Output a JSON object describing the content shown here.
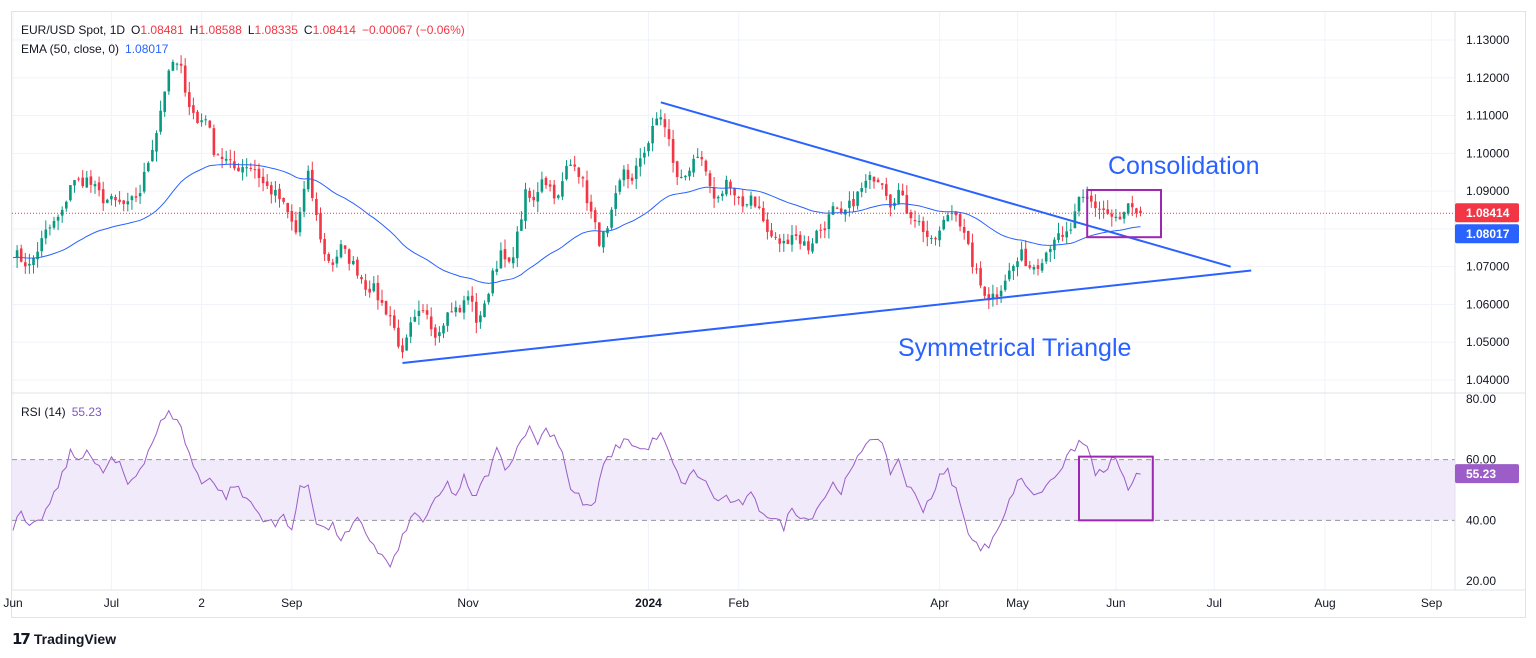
{
  "legend": {
    "symbol": "EUR/USD Spot, 1D",
    "open_label": "O",
    "open": "1.08481",
    "high_label": "H",
    "high": "1.08588",
    "low_label": "L",
    "low": "1.08335",
    "close_label": "C",
    "close": "1.08414",
    "change": "−0.00067 (−0.06%)",
    "ema_label": "EMA (50, close, 0)",
    "ema_value": "1.08017",
    "rsi_label": "RSI (14)",
    "rsi_value": "55.23"
  },
  "annotations": {
    "consolidation": "Consolidation",
    "triangle": "Symmetrical Triangle"
  },
  "branding": {
    "logo": "17",
    "name": "TradingView"
  },
  "colors": {
    "up": "#089981",
    "down": "#f23645",
    "ema": "#2962ff",
    "rsi": "#9c5dc8",
    "rsi_band": "#f0eafa",
    "box": "#9c27b0",
    "trend": "#2962ff",
    "grid": "#f0f3fa",
    "text": "#131722"
  },
  "chart_data": [
    {
      "type": "candlestick",
      "title": "EUR/USD Spot, 1D",
      "ylim": [
        1.036,
        1.134
      ],
      "y_ticks": [
        "1.04000",
        "1.05000",
        "1.06000",
        "1.07000",
        "1.08000",
        "1.09000",
        "1.10000",
        "1.11000",
        "1.12000",
        "1.13000"
      ],
      "x_ticks": [
        "Jun",
        "Jul",
        "2",
        "Sep",
        "Nov",
        "2024",
        "Feb",
        "Apr",
        "May",
        "Jun",
        "Jul",
        "Aug",
        "Sep"
      ],
      "price_labels": {
        "last": "1.08414",
        "ema": "1.08017"
      },
      "ema_period": 50,
      "close_path": [
        [
          0,
          1.074
        ],
        [
          4,
          1.07
        ],
        [
          8,
          1.079
        ],
        [
          12,
          1.084
        ],
        [
          14,
          1.092
        ],
        [
          18,
          1.093
        ],
        [
          22,
          1.088
        ],
        [
          25,
          1.087
        ],
        [
          28,
          1.086
        ],
        [
          31,
          1.09
        ],
        [
          33,
          1.098
        ],
        [
          35,
          1.106
        ],
        [
          37,
          1.117
        ],
        [
          39,
          1.124
        ],
        [
          41,
          1.122
        ],
        [
          43,
          1.113
        ],
        [
          45,
          1.108
        ],
        [
          47,
          1.11
        ],
        [
          49,
          1.101
        ],
        [
          51,
          1.099
        ],
        [
          54,
          1.096
        ],
        [
          57,
          1.097
        ],
        [
          59,
          1.096
        ],
        [
          61,
          1.092
        ],
        [
          63,
          1.09
        ],
        [
          65,
          1.088
        ],
        [
          67,
          1.084
        ],
        [
          69,
          1.079
        ],
        [
          71,
          1.09
        ],
        [
          72,
          1.094
        ],
        [
          74,
          1.083
        ],
        [
          76,
          1.073
        ],
        [
          78,
          1.071
        ],
        [
          80,
          1.075
        ],
        [
          82,
          1.072
        ],
        [
          84,
          1.069
        ],
        [
          86,
          1.065
        ],
        [
          88,
          1.064
        ],
        [
          90,
          1.06
        ],
        [
          92,
          1.057
        ],
        [
          94,
          1.05
        ],
        [
          95,
          1.046
        ],
        [
          97,
          1.054
        ],
        [
          99,
          1.057
        ],
        [
          101,
          1.058
        ],
        [
          103,
          1.052
        ],
        [
          105,
          1.056
        ],
        [
          107,
          1.059
        ],
        [
          109,
          1.058
        ],
        [
          111,
          1.063
        ],
        [
          113,
          1.056
        ],
        [
          115,
          1.059
        ],
        [
          117,
          1.069
        ],
        [
          119,
          1.073
        ],
        [
          121,
          1.07
        ],
        [
          123,
          1.078
        ],
        [
          125,
          1.089
        ],
        [
          127,
          1.087
        ],
        [
          129,
          1.094
        ],
        [
          131,
          1.091
        ],
        [
          133,
          1.088
        ],
        [
          135,
          1.096
        ],
        [
          137,
          1.098
        ],
        [
          139,
          1.092
        ],
        [
          141,
          1.084
        ],
        [
          143,
          1.077
        ],
        [
          145,
          1.079
        ],
        [
          147,
          1.088
        ],
        [
          149,
          1.096
        ],
        [
          151,
          1.092
        ],
        [
          153,
          1.099
        ],
        [
          155,
          1.103
        ],
        [
          157,
          1.109
        ],
        [
          158,
          1.11
        ],
        [
          160,
          1.103
        ],
        [
          162,
          1.093
        ],
        [
          164,
          1.095
        ],
        [
          166,
          1.097
        ],
        [
          168,
          1.098
        ],
        [
          170,
          1.09
        ],
        [
          172,
          1.088
        ],
        [
          174,
          1.093
        ],
        [
          176,
          1.088
        ],
        [
          178,
          1.086
        ],
        [
          180,
          1.089
        ],
        [
          182,
          1.085
        ],
        [
          184,
          1.079
        ],
        [
          186,
          1.077
        ],
        [
          188,
          1.076
        ],
        [
          190,
          1.079
        ],
        [
          192,
          1.077
        ],
        [
          194,
          1.075
        ],
        [
          196,
          1.079
        ],
        [
          198,
          1.081
        ],
        [
          200,
          1.085
        ],
        [
          202,
          1.083
        ],
        [
          204,
          1.086
        ],
        [
          206,
          1.089
        ],
        [
          208,
          1.092
        ],
        [
          210,
          1.094
        ],
        [
          212,
          1.093
        ],
        [
          214,
          1.087
        ],
        [
          216,
          1.09
        ],
        [
          218,
          1.085
        ],
        [
          220,
          1.083
        ],
        [
          222,
          1.08
        ],
        [
          224,
          1.076
        ],
        [
          226,
          1.079
        ],
        [
          228,
          1.084
        ],
        [
          230,
          1.085
        ],
        [
          232,
          1.078
        ],
        [
          234,
          1.071
        ],
        [
          236,
          1.065
        ],
        [
          238,
          1.062
        ],
        [
          240,
          1.063
        ],
        [
          242,
          1.067
        ],
        [
          244,
          1.07
        ],
        [
          246,
          1.073
        ],
        [
          248,
          1.07
        ],
        [
          250,
          1.071
        ],
        [
          252,
          1.074
        ],
        [
          254,
          1.078
        ],
        [
          256,
          1.077
        ],
        [
          258,
          1.08
        ],
        [
          260,
          1.087
        ],
        [
          262,
          1.088
        ],
        [
          264,
          1.086
        ],
        [
          266,
          1.085
        ],
        [
          268,
          1.083
        ],
        [
          270,
          1.082
        ],
        [
          272,
          1.086
        ],
        [
          274,
          1.083
        ],
        [
          275,
          1.0841
        ]
      ],
      "annotations": [
        {
          "type": "trendline",
          "label": "upper",
          "from": [
            158,
            1.1135
          ],
          "to": [
            297,
            1.07
          ]
        },
        {
          "type": "trendline",
          "label": "lower",
          "from": [
            95,
            1.0445
          ],
          "to": [
            302,
            1.069
          ]
        },
        {
          "type": "box",
          "label": "Consolidation",
          "x": [
            262,
            280
          ],
          "y": [
            1.0778,
            1.0903
          ]
        }
      ]
    },
    {
      "type": "line",
      "title": "RSI (14)",
      "ylim": [
        20,
        80
      ],
      "y_ticks": [
        "20.00",
        "40.00",
        "60.00",
        "80.00"
      ],
      "band": [
        40,
        60
      ],
      "last": "55.23",
      "path": [
        [
          0,
          38
        ],
        [
          2,
          42
        ],
        [
          4,
          37
        ],
        [
          6,
          39
        ],
        [
          8,
          43
        ],
        [
          10,
          48
        ],
        [
          12,
          55
        ],
        [
          14,
          62
        ],
        [
          16,
          60
        ],
        [
          18,
          64
        ],
        [
          20,
          58
        ],
        [
          22,
          56
        ],
        [
          24,
          60
        ],
        [
          26,
          58
        ],
        [
          28,
          52
        ],
        [
          30,
          55
        ],
        [
          32,
          60
        ],
        [
          34,
          66
        ],
        [
          36,
          72
        ],
        [
          38,
          75
        ],
        [
          40,
          74
        ],
        [
          42,
          66
        ],
        [
          44,
          58
        ],
        [
          46,
          52
        ],
        [
          48,
          55
        ],
        [
          50,
          50
        ],
        [
          52,
          48
        ],
        [
          54,
          52
        ],
        [
          56,
          48
        ],
        [
          58,
          46
        ],
        [
          60,
          42
        ],
        [
          62,
          40
        ],
        [
          64,
          38
        ],
        [
          66,
          42
        ],
        [
          68,
          37
        ],
        [
          70,
          50
        ],
        [
          72,
          52
        ],
        [
          74,
          40
        ],
        [
          76,
          37
        ],
        [
          78,
          38
        ],
        [
          80,
          34
        ],
        [
          82,
          36
        ],
        [
          84,
          40
        ],
        [
          86,
          36
        ],
        [
          88,
          32
        ],
        [
          90,
          28
        ],
        [
          92,
          25
        ],
        [
          94,
          30
        ],
        [
          96,
          38
        ],
        [
          98,
          42
        ],
        [
          100,
          40
        ],
        [
          102,
          44
        ],
        [
          104,
          48
        ],
        [
          106,
          52
        ],
        [
          108,
          48
        ],
        [
          110,
          54
        ],
        [
          112,
          47
        ],
        [
          114,
          51
        ],
        [
          116,
          56
        ],
        [
          118,
          63
        ],
        [
          120,
          58
        ],
        [
          122,
          60
        ],
        [
          124,
          68
        ],
        [
          126,
          70
        ],
        [
          128,
          66
        ],
        [
          130,
          70
        ],
        [
          132,
          68
        ],
        [
          134,
          63
        ],
        [
          136,
          50
        ],
        [
          138,
          48
        ],
        [
          140,
          44
        ],
        [
          142,
          46
        ],
        [
          144,
          58
        ],
        [
          146,
          62
        ],
        [
          148,
          65
        ],
        [
          150,
          67
        ],
        [
          152,
          64
        ],
        [
          154,
          63
        ],
        [
          156,
          66
        ],
        [
          158,
          68
        ],
        [
          160,
          62
        ],
        [
          162,
          55
        ],
        [
          164,
          52
        ],
        [
          166,
          56
        ],
        [
          168,
          54
        ],
        [
          170,
          50
        ],
        [
          172,
          46
        ],
        [
          174,
          48
        ],
        [
          176,
          45
        ],
        [
          178,
          46
        ],
        [
          180,
          48
        ],
        [
          182,
          44
        ],
        [
          184,
          42
        ],
        [
          186,
          40
        ],
        [
          188,
          38
        ],
        [
          190,
          44
        ],
        [
          192,
          42
        ],
        [
          194,
          40
        ],
        [
          196,
          44
        ],
        [
          198,
          48
        ],
        [
          200,
          52
        ],
        [
          202,
          50
        ],
        [
          204,
          55
        ],
        [
          206,
          60
        ],
        [
          208,
          66
        ],
        [
          210,
          68
        ],
        [
          212,
          64
        ],
        [
          214,
          56
        ],
        [
          216,
          60
        ],
        [
          218,
          52
        ],
        [
          220,
          48
        ],
        [
          222,
          44
        ],
        [
          224,
          48
        ],
        [
          226,
          54
        ],
        [
          228,
          56
        ],
        [
          230,
          50
        ],
        [
          232,
          40
        ],
        [
          234,
          34
        ],
        [
          236,
          30
        ],
        [
          238,
          32
        ],
        [
          240,
          38
        ],
        [
          242,
          42
        ],
        [
          244,
          50
        ],
        [
          246,
          54
        ],
        [
          248,
          50
        ],
        [
          250,
          48
        ],
        [
          252,
          52
        ],
        [
          254,
          55
        ],
        [
          256,
          58
        ],
        [
          258,
          62
        ],
        [
          260,
          66
        ],
        [
          262,
          64
        ],
        [
          264,
          56
        ],
        [
          266,
          55
        ],
        [
          268,
          60
        ],
        [
          270,
          58
        ],
        [
          272,
          49
        ],
        [
          274,
          56
        ],
        [
          275,
          55.23
        ]
      ],
      "annotations": [
        {
          "type": "box",
          "x": [
            260,
            278
          ],
          "y": [
            40,
            61
          ]
        }
      ]
    }
  ]
}
